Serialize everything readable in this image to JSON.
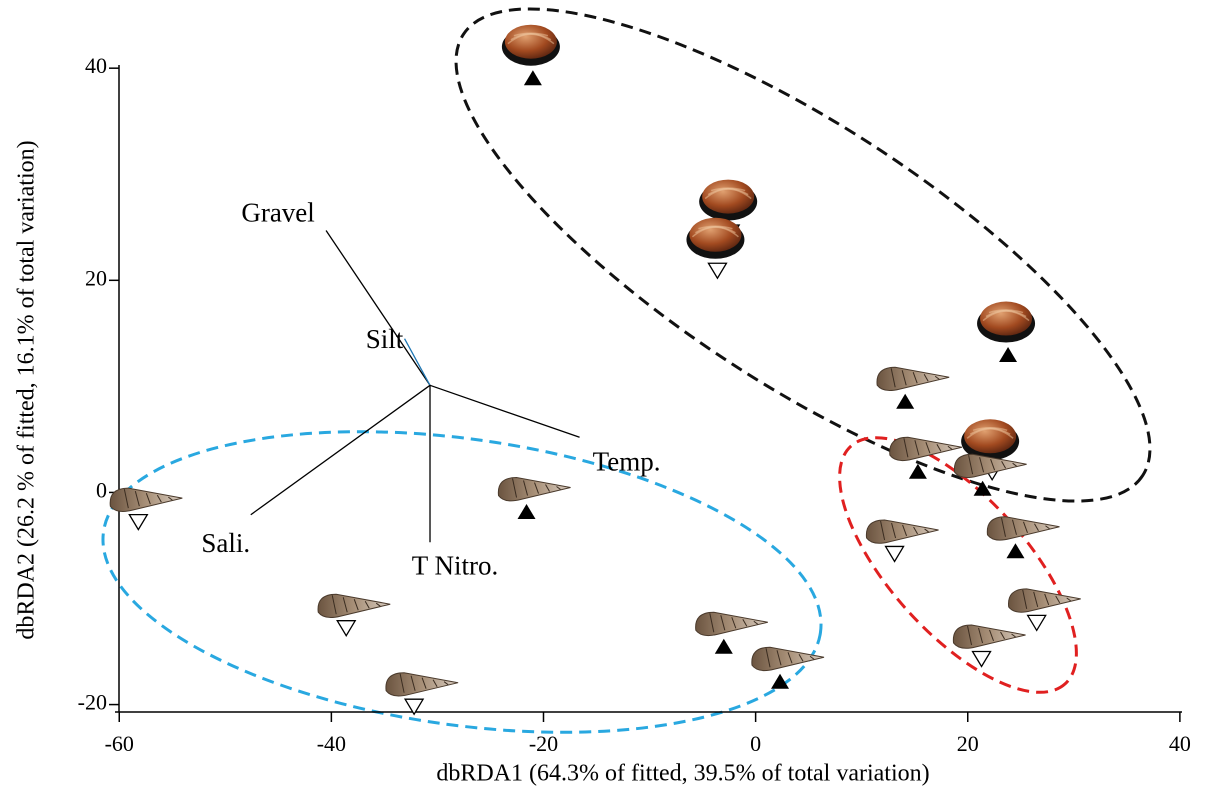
{
  "chart_data": {
    "type": "scatter",
    "xlabel": "dbRDA1 (64.3% of fitted, 39.5% of total variation)",
    "ylabel": "dbRDA2 (26.2 % of fitted, 16.1% of total variation)",
    "xlim": [
      -60.4,
      40.2
    ],
    "xticks": [
      -60,
      -40,
      -20,
      0,
      20,
      40
    ],
    "ylim": [
      -20.7,
      40.3
    ],
    "yticks": [
      -20,
      0,
      20,
      40
    ],
    "series": [
      {
        "marker": "filled",
        "icon": "clam",
        "color": "#000000",
        "x": [
          -21,
          23.8
        ],
        "values": [
          39.1,
          13
        ]
      },
      {
        "marker": "open",
        "icon": "clam",
        "color": "#000000",
        "x": [
          -2.4,
          -3.6,
          22.3
        ],
        "values": [
          24.5,
          20.9,
          1.9
        ]
      },
      {
        "marker": "filled",
        "icon": "snail",
        "color": "#000000",
        "x": [
          14.1,
          15.3,
          21.4,
          24.5,
          -21.6,
          -3,
          2.3
        ],
        "values": [
          8.6,
          2,
          0.4,
          -5.5,
          -1.8,
          -14.5,
          -17.8
        ]
      },
      {
        "marker": "open",
        "icon": "snail",
        "color": "#000000",
        "x": [
          13.1,
          26.5,
          21.3,
          -58.2,
          -38.6,
          -32.2
        ],
        "values": [
          -5.8,
          -12.3,
          -15.7,
          -2.8,
          -12.8,
          -20.2
        ]
      }
    ],
    "vector_origin": {
      "x": -30.7,
      "y": 10.1
    },
    "vectors": [
      {
        "label": "Gravel",
        "x": -40.5,
        "y": 24.7,
        "color": "#000000"
      },
      {
        "label": "Silt",
        "x": -33.1,
        "y": 14.5,
        "color": "#1f77b4"
      },
      {
        "label": "Temp.",
        "x": -16.6,
        "y": 5.2,
        "color": "#000000"
      },
      {
        "label": "Sali.",
        "x": -47.6,
        "y": -2.1,
        "color": "#000000"
      },
      {
        "label": "T Nitro.",
        "x": -30.7,
        "y": -4.7,
        "color": "#000000"
      }
    ]
  }
}
